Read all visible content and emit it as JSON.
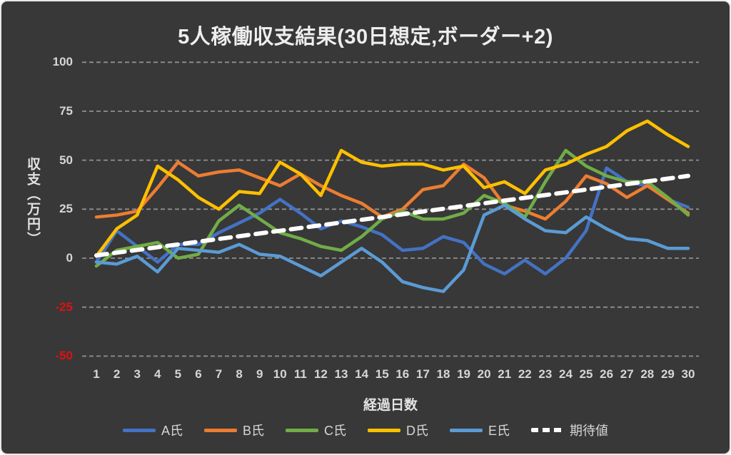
{
  "title": "5人稼働収支結果(30日想定,ボーダー+2)",
  "colors": {
    "background": "#383838",
    "grid": "#8f8f8f",
    "tick_text": "#d6d6d6",
    "negative_tick_text": "#e01010",
    "series_A": "#4472C4",
    "series_B": "#ED7D31",
    "series_C": "#70AD47",
    "series_D": "#FFC000",
    "series_E": "#5B9BD5",
    "expected": "#FFFFFF"
  },
  "y_axis": {
    "label": "収支（万円）",
    "ticks": [
      {
        "label": "100",
        "value": 100,
        "negative": false
      },
      {
        "label": "75",
        "value": 75,
        "negative": false
      },
      {
        "label": "50",
        "value": 50,
        "negative": false
      },
      {
        "label": "25",
        "value": 25,
        "negative": false
      },
      {
        "label": "0",
        "value": 0,
        "negative": false
      },
      {
        "label": "-25",
        "value": -25,
        "negative": true
      },
      {
        "label": "-50",
        "value": -50,
        "negative": true
      }
    ]
  },
  "x_axis": {
    "label": "経過日数",
    "ticks": [
      1,
      2,
      3,
      4,
      5,
      6,
      7,
      8,
      9,
      10,
      11,
      12,
      13,
      14,
      15,
      16,
      17,
      18,
      19,
      20,
      21,
      22,
      23,
      24,
      25,
      26,
      27,
      28,
      29,
      30
    ]
  },
  "legend": [
    {
      "label": "A氏",
      "color": "#4472C4",
      "dashed": false
    },
    {
      "label": "B氏",
      "color": "#ED7D31",
      "dashed": false
    },
    {
      "label": "C氏",
      "color": "#70AD47",
      "dashed": false
    },
    {
      "label": "D氏",
      "color": "#FFC000",
      "dashed": false
    },
    {
      "label": "E氏",
      "color": "#5B9BD5",
      "dashed": false
    },
    {
      "label": "期待値",
      "color": "#FFFFFF",
      "dashed": true
    }
  ],
  "chart_data": {
    "type": "line",
    "title": "5人稼働収支結果(30日想定,ボーダー+2)",
    "xlabel": "経過日数",
    "ylabel": "収支（万円）",
    "x": [
      1,
      2,
      3,
      4,
      5,
      6,
      7,
      8,
      9,
      10,
      11,
      12,
      13,
      14,
      15,
      16,
      17,
      18,
      19,
      20,
      21,
      22,
      23,
      24,
      25,
      26,
      27,
      28,
      29,
      30
    ],
    "ylim": [
      -50,
      100
    ],
    "grid": "horizontal-dashed",
    "legend_position": "bottom",
    "series": [
      {
        "name": "A氏",
        "color": "#4472C4",
        "style": "solid",
        "values": [
          -2,
          14,
          6,
          -2,
          7,
          7,
          13,
          18,
          23,
          30,
          23,
          15,
          19,
          16,
          12,
          4,
          5,
          11,
          8,
          -3,
          -8,
          -1,
          -8,
          0,
          14,
          46,
          39,
          37,
          30,
          26
        ]
      },
      {
        "name": "B氏",
        "color": "#ED7D31",
        "style": "solid",
        "values": [
          21,
          22,
          24,
          36,
          49,
          42,
          44,
          45,
          41,
          37,
          43,
          37,
          32,
          28,
          21,
          25,
          35,
          37,
          48,
          41,
          27,
          24,
          20,
          29,
          42,
          38,
          31,
          37,
          30,
          23
        ]
      },
      {
        "name": "C氏",
        "color": "#70AD47",
        "style": "solid",
        "values": [
          -4,
          4,
          6,
          8,
          0,
          2,
          19,
          27,
          20,
          13,
          10,
          6,
          4,
          11,
          20,
          24,
          20,
          20,
          23,
          32,
          28,
          21,
          39,
          55,
          47,
          42,
          39,
          39,
          31,
          22
        ]
      },
      {
        "name": "D氏",
        "color": "#FFC000",
        "style": "solid",
        "values": [
          1,
          15,
          22,
          47,
          40,
          31,
          25,
          34,
          33,
          49,
          43,
          32,
          55,
          49,
          47,
          48,
          48,
          45,
          47,
          36,
          39,
          33,
          45,
          48,
          53,
          57,
          65,
          70,
          63,
          57
        ]
      },
      {
        "name": "E氏",
        "color": "#5B9BD5",
        "style": "solid",
        "values": [
          -2,
          -3,
          1,
          -7,
          5,
          4,
          3,
          7,
          2,
          1,
          -4,
          -9,
          -2,
          5,
          -2,
          -12,
          -15,
          -17,
          -6,
          22,
          27,
          20,
          14,
          13,
          21,
          15,
          10,
          9,
          5,
          5
        ]
      },
      {
        "name": "期待値",
        "color": "#FFFFFF",
        "style": "dashed",
        "values": [
          1.4,
          2.8,
          4.2,
          5.6,
          7,
          8.4,
          9.8,
          11.2,
          12.6,
          14,
          15.4,
          16.8,
          18.2,
          19.6,
          21,
          22.4,
          23.8,
          25.2,
          26.6,
          28,
          29.4,
          30.8,
          32.2,
          33.6,
          35,
          36.4,
          37.8,
          39.2,
          40.6,
          42
        ]
      }
    ]
  }
}
